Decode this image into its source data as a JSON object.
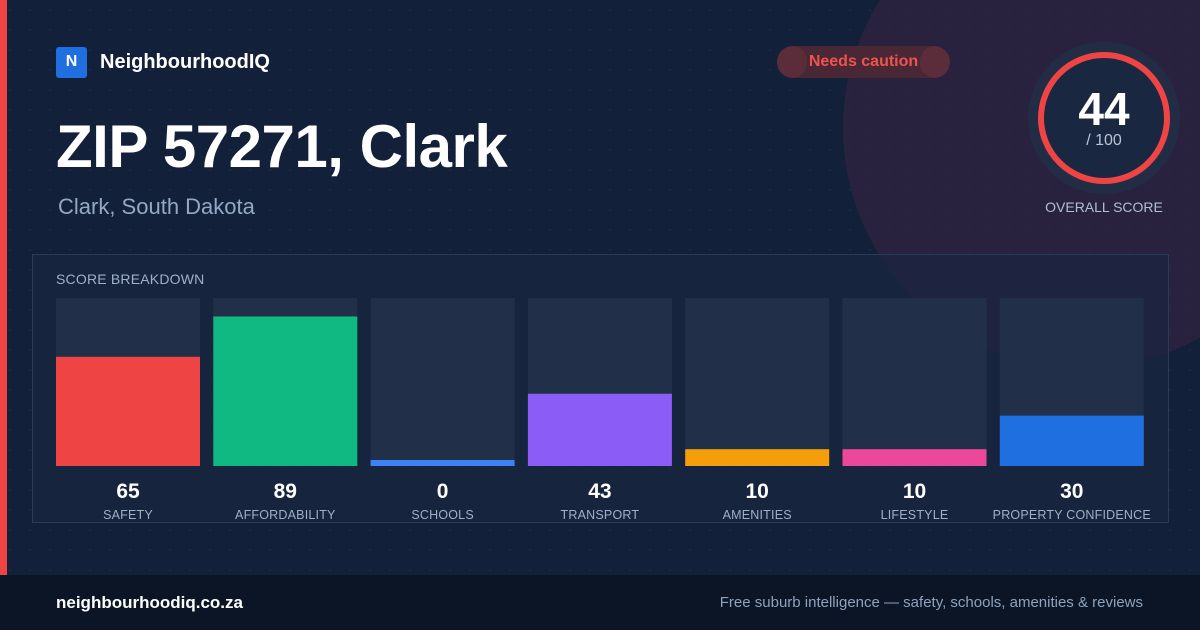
{
  "brand": {
    "logo_letter": "N",
    "name": "NeighbourhoodIQ"
  },
  "badge": {
    "label": "Needs caution",
    "color": "#ef5350"
  },
  "header": {
    "title": "ZIP 57271, Clark",
    "subtitle": "Clark, South Dakota"
  },
  "overall": {
    "score": 44,
    "max_label": "/ 100",
    "label": "OVERALL SCORE",
    "max": 100,
    "ring_color": "#ef4444"
  },
  "breakdown": {
    "title": "SCORE BREAKDOWN"
  },
  "chart_data": {
    "type": "bar",
    "title": "SCORE BREAKDOWN",
    "ylim": [
      0,
      100
    ],
    "grid": false,
    "categories": [
      "SAFETY",
      "AFFORDABILITY",
      "SCHOOLS",
      "TRANSPORT",
      "AMENITIES",
      "LIFESTYLE",
      "PROPERTY CONFIDENCE"
    ],
    "values": [
      65,
      89,
      0,
      43,
      10,
      10,
      30
    ],
    "colors": [
      "#ef4444",
      "#10b981",
      "#3b82f6",
      "#8b5cf6",
      "#f59e0b",
      "#ec4899",
      "#1f6fe0"
    ]
  },
  "footer": {
    "domain": "neighbourhoodiq.co.za",
    "tagline": "Free suburb intelligence — safety, schools, amenities & reviews"
  }
}
